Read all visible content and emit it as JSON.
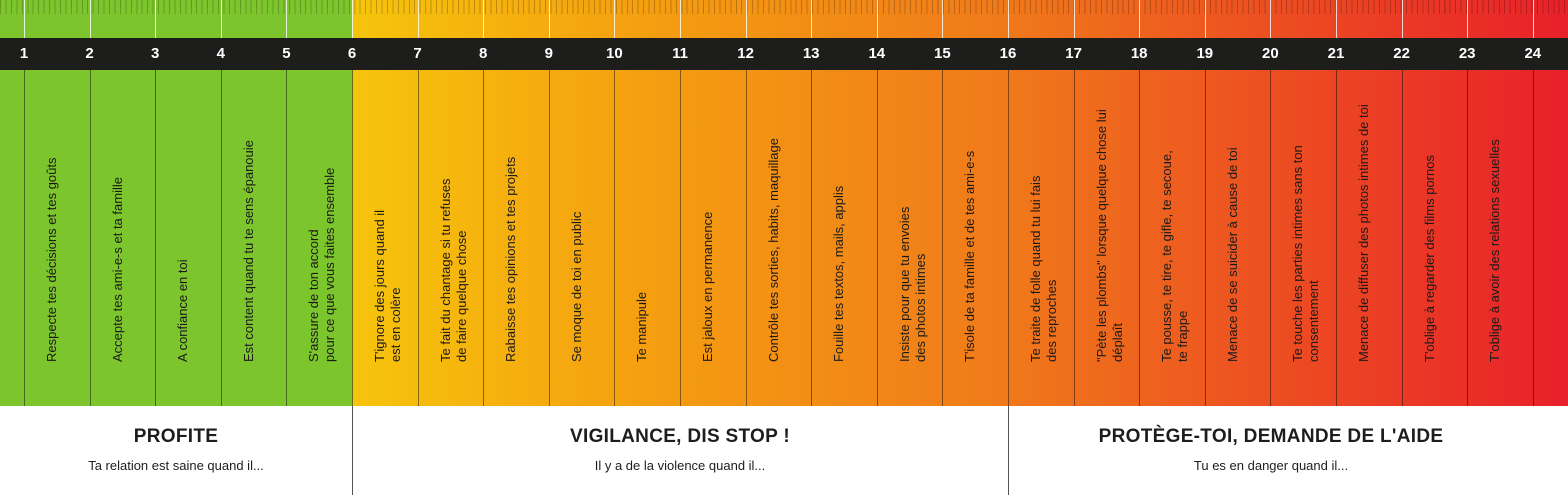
{
  "scale": {
    "numbers": [
      "1",
      "2",
      "3",
      "4",
      "5",
      "6",
      "7",
      "8",
      "9",
      "10",
      "11",
      "12",
      "13",
      "14",
      "15",
      "16",
      "17",
      "18",
      "19",
      "20",
      "21",
      "22",
      "23",
      "24"
    ],
    "items": [
      "Respecte tes décisions et tes goûts",
      "Accepte tes ami-e-s et ta famille",
      "A confiance en toi",
      "Est content quand tu te sens épanouie",
      "S'assure de ton accord\npour ce que vous faites ensemble",
      "T'ignore des jours quand il\nest en colère",
      "Te fait du chantage si tu refuses\nde faire quelque chose",
      "Rabaisse tes opinions et tes projets",
      "Se moque de toi en public",
      "Te manipule",
      "Est jaloux en permanence",
      "Contrôle tes sorties, habits, maquillage",
      "Fouille tes textos, mails, applis",
      "Insiste pour que tu envoies\ndes photos intimes",
      "T'isole de ta famille et de tes ami-e-s",
      "Te traite de folle quand tu lui fais\ndes reproches",
      "\"Pète les plombs\" lorsque quelque chose lui\ndéplaît",
      "Te pousse, te tire, te gifle, te secoue,\nte frappe",
      "Menace de se suicider à cause de toi",
      "Te touche les parties intimes sans ton\nconsentement",
      "Menace de diffuser des photos intimes de toi",
      "T'oblige à regarder des films pornos",
      "T'oblige à avoir des relations sexuelles"
    ]
  },
  "sections": [
    {
      "title": "PROFITE",
      "subtitle": "Ta relation est saine quand il..."
    },
    {
      "title": "VIGILANCE, DIS STOP !",
      "subtitle": "Il y a de la violence quand il..."
    },
    {
      "title": "PROTÈGE-TOI, DEMANDE DE L'AIDE",
      "subtitle": "Tu es en danger quand il..."
    }
  ],
  "colors": {
    "green": "#7dc52c",
    "yellow": "#f6c40c",
    "orange": "#f07a1a",
    "red": "#e8202a",
    "band": "#1d1d1b"
  }
}
